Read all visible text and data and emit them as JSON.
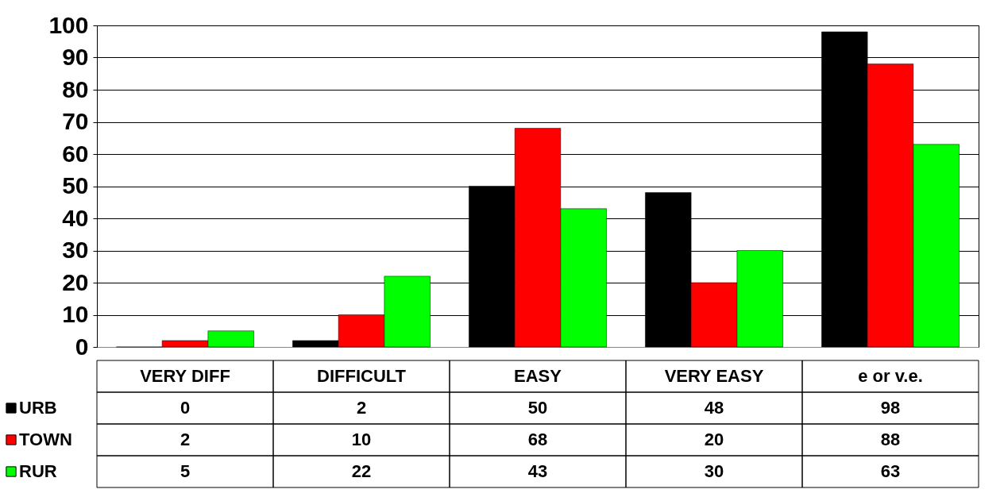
{
  "chart_data": {
    "type": "bar",
    "categories": [
      "VERY DIFF",
      "DIFFICULT",
      "EASY",
      "VERY EASY",
      "e or v.e."
    ],
    "series": [
      {
        "name": "URB",
        "color": "#000000",
        "values": [
          0,
          2,
          50,
          48,
          98
        ]
      },
      {
        "name": "TOWN",
        "color": "#ff0000",
        "values": [
          2,
          10,
          68,
          20,
          88
        ]
      },
      {
        "name": "RUR",
        "color": "#00ff00",
        "values": [
          5,
          22,
          43,
          30,
          63
        ]
      }
    ],
    "ylim": [
      0,
      100
    ],
    "yticks": [
      0,
      10,
      20,
      30,
      40,
      50,
      60,
      70,
      80,
      90,
      100
    ],
    "grid": "y",
    "legend": "left",
    "data_labels": true
  }
}
